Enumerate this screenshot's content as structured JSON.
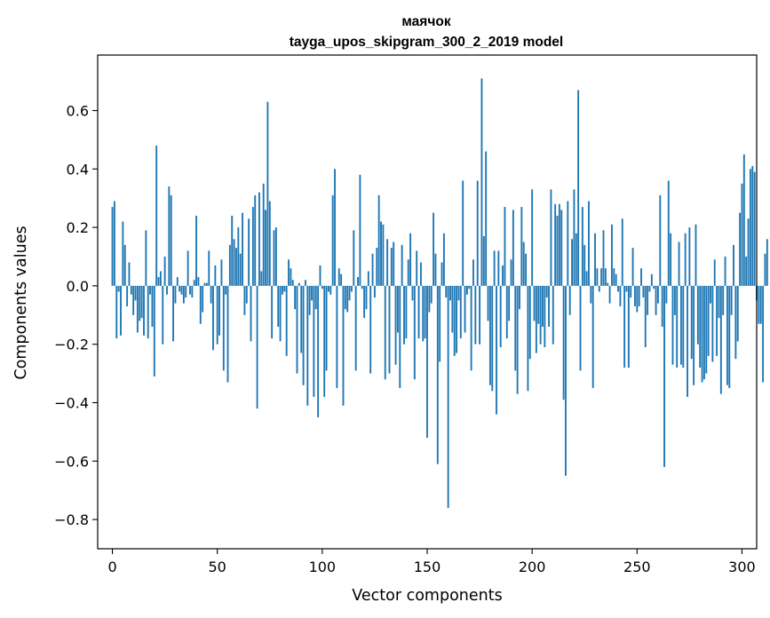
{
  "chart_data": {
    "type": "bar",
    "title": "маячок",
    "subtitle": "tayga_upos_skipgram_300_2_2019 model",
    "xlabel": "Vector components",
    "ylabel": "Components values",
    "xlim": [
      -7,
      307
    ],
    "ylim": [
      -0.9,
      0.79
    ],
    "xticks": [
      0,
      50,
      100,
      150,
      200,
      250,
      300
    ],
    "xtick_labels": [
      "0",
      "50",
      "100",
      "150",
      "200",
      "250",
      "300"
    ],
    "yticks": [
      -0.8,
      -0.6,
      -0.4,
      -0.2,
      0.0,
      0.2,
      0.4,
      0.6
    ],
    "ytick_labels": [
      "−0.8",
      "−0.6",
      "−0.4",
      "−0.2",
      "0.0",
      "0.2",
      "0.4",
      "0.6"
    ],
    "bar_color": "#1f77b4",
    "grid": false,
    "values": [
      0.27,
      0.29,
      -0.18,
      -0.02,
      -0.17,
      0.22,
      0.14,
      -0.07,
      0.08,
      -0.03,
      -0.1,
      -0.05,
      -0.16,
      -0.12,
      -0.11,
      -0.17,
      0.19,
      -0.18,
      -0.03,
      -0.14,
      -0.31,
      0.48,
      0.03,
      0.05,
      -0.2,
      0.1,
      -0.03,
      0.34,
      0.31,
      -0.19,
      -0.06,
      0.03,
      -0.02,
      -0.03,
      -0.06,
      -0.04,
      0.12,
      -0.03,
      -0.04,
      0.02,
      0.24,
      0.03,
      -0.13,
      -0.09,
      0.01,
      0.01,
      0.12,
      -0.06,
      -0.22,
      0.07,
      -0.2,
      -0.17,
      0.09,
      -0.29,
      -0.03,
      -0.33,
      0.14,
      0.24,
      0.16,
      0.13,
      0.2,
      0.11,
      0.25,
      -0.1,
      -0.06,
      0.23,
      -0.19,
      0.27,
      0.31,
      -0.42,
      0.32,
      0.05,
      0.35,
      0.26,
      0.63,
      0.29,
      -0.18,
      0.19,
      0.2,
      -0.14,
      -0.19,
      -0.03,
      -0.02,
      -0.24,
      0.09,
      0.06,
      0.02,
      -0.08,
      -0.3,
      0.01,
      -0.23,
      -0.34,
      0.02,
      -0.41,
      -0.1,
      -0.05,
      -0.38,
      -0.08,
      -0.45,
      0.07,
      -0.01,
      -0.38,
      -0.29,
      -0.02,
      -0.03,
      0.31,
      0.4,
      -0.35,
      0.06,
      0.04,
      -0.41,
      -0.08,
      -0.09,
      -0.05,
      -0.02,
      0.19,
      -0.29,
      0.03,
      0.38,
      -0.01,
      -0.11,
      -0.08,
      0.05,
      -0.3,
      0.11,
      -0.04,
      0.13,
      0.31,
      0.22,
      0.21,
      -0.32,
      0.16,
      -0.3,
      0.13,
      0.15,
      -0.27,
      -0.16,
      -0.35,
      0.14,
      -0.2,
      -0.18,
      0.09,
      0.18,
      -0.05,
      -0.32,
      0.12,
      -0.18,
      0.08,
      -0.19,
      -0.18,
      -0.52,
      -0.09,
      -0.06,
      0.25,
      0.11,
      -0.61,
      -0.26,
      0.08,
      0.18,
      -0.04,
      -0.76,
      -0.05,
      -0.16,
      -0.24,
      -0.23,
      -0.05,
      -0.18,
      0.36,
      -0.16,
      -0.03,
      -0.01,
      -0.29,
      0.09,
      -0.2,
      0.36,
      -0.2,
      0.71,
      0.17,
      0.46,
      -0.12,
      -0.34,
      -0.36,
      0.12,
      -0.44,
      0.12,
      -0.21,
      0.07,
      0.27,
      -0.18,
      -0.12,
      0.09,
      0.26,
      -0.29,
      -0.37,
      -0.08,
      0.27,
      0.15,
      0.11,
      -0.36,
      -0.25,
      0.33,
      -0.12,
      -0.23,
      -0.13,
      -0.2,
      -0.14,
      -0.21,
      -0.04,
      -0.14,
      0.33,
      -0.2,
      0.28,
      0.24,
      0.28,
      0.26,
      -0.39,
      -0.65,
      0.29,
      -0.1,
      0.16,
      0.33,
      0.18,
      0.67,
      -0.29,
      0.27,
      0.14,
      0.05,
      0.29,
      -0.06,
      -0.35,
      0.18,
      0.06,
      -0.02,
      0.06,
      0.19,
      0.06,
      0.01,
      -0.06,
      0.21,
      0.06,
      0.04,
      -0.02,
      -0.07,
      0.23,
      -0.28,
      -0.02,
      -0.28,
      -0.04,
      0.13,
      -0.07,
      -0.09,
      -0.07,
      0.06,
      -0.04,
      -0.21,
      -0.1,
      -0.02,
      0.04,
      -0.01,
      -0.1,
      -0.06,
      0.31,
      -0.14,
      -0.62,
      -0.06,
      0.36,
      0.18,
      -0.27,
      -0.1,
      -0.28,
      0.15,
      -0.27,
      -0.28,
      0.18,
      -0.38,
      0.2,
      -0.25,
      -0.34,
      0.21,
      -0.2,
      -0.28,
      -0.33,
      -0.32,
      -0.3,
      -0.24,
      -0.06,
      -0.26,
      0.09,
      -0.24,
      -0.11,
      -0.37,
      -0.1,
      0.1,
      -0.34,
      -0.35,
      -0.1,
      0.14,
      -0.25,
      -0.19,
      0.25,
      0.35,
      0.45,
      0.1,
      0.23,
      0.4,
      0.41,
      0.39,
      -0.05,
      -0.13,
      -0.13,
      -0.33,
      0.11,
      0.16
    ]
  }
}
